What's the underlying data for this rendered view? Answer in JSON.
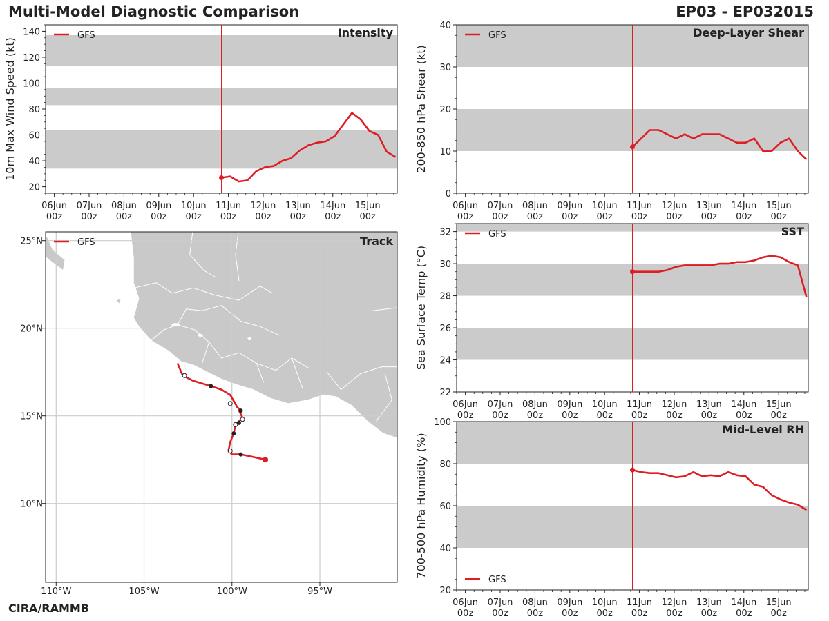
{
  "header": {
    "title": "Multi-Model Diagnostic Comparison",
    "storm_id": "EP03 - EP032015",
    "credit": "CIRA/RAMMB"
  },
  "colors": {
    "series": "#dd1f25",
    "band": "#cbcbcb",
    "land": "#c9c9c9",
    "grid": "#cccccc",
    "axis": "#222222"
  },
  "time_axis": {
    "labels_top": [
      "06Jun",
      "07Jun",
      "08Jun",
      "09Jun",
      "10Jun",
      "11Jun",
      "12Jun",
      "13Jun",
      "14Jun",
      "15Jun"
    ],
    "labels_bottom": [
      "00z",
      "00z",
      "00z",
      "00z",
      "00z",
      "00z",
      "00z",
      "00z",
      "00z",
      "00z"
    ],
    "range_days": [
      -0.25,
      9.85
    ],
    "initial_time_day": 4.8
  },
  "chart_data": [
    {
      "id": "intensity",
      "type": "line",
      "title": "Intensity",
      "ylabel": "10m Max Wind Speed (kt)",
      "ylim": [
        15,
        145
      ],
      "yticks": [
        20,
        40,
        60,
        80,
        100,
        120,
        140
      ],
      "bands": [
        [
          34,
          64
        ],
        [
          83,
          96
        ],
        [
          113,
          137
        ]
      ],
      "legend": "GFS",
      "legend_position": "top-left",
      "series": [
        {
          "name": "GFS",
          "x": [
            4.8,
            5.05,
            5.3,
            5.55,
            5.8,
            6.05,
            6.3,
            6.55,
            6.8,
            7.05,
            7.3,
            7.55,
            7.8,
            8.05,
            8.3,
            8.55,
            8.8,
            9.05,
            9.3,
            9.55,
            9.8
          ],
          "y": [
            27,
            28,
            24,
            25,
            32,
            35,
            36,
            40,
            42,
            48,
            52,
            54,
            55,
            59,
            68,
            77,
            72,
            63,
            60,
            47,
            43
          ]
        }
      ]
    },
    {
      "id": "shear",
      "type": "line",
      "title": "Deep-Layer Shear",
      "ylabel": "200-850 hPa Shear (kt)",
      "ylim": [
        0,
        40
      ],
      "yticks": [
        0,
        10,
        20,
        30,
        40
      ],
      "bands": [
        [
          10,
          20
        ],
        [
          30,
          40
        ]
      ],
      "legend": "GFS",
      "legend_position": "top-left",
      "series": [
        {
          "name": "GFS",
          "x": [
            4.8,
            5.05,
            5.3,
            5.55,
            5.8,
            6.05,
            6.3,
            6.55,
            6.8,
            7.05,
            7.3,
            7.55,
            7.8,
            8.05,
            8.3,
            8.55,
            8.8,
            9.05,
            9.3,
            9.55,
            9.8
          ],
          "y": [
            11,
            13,
            15,
            15,
            14,
            13,
            14,
            13,
            14,
            14,
            14,
            13,
            12,
            12,
            13,
            10,
            10,
            12,
            13,
            10,
            8
          ]
        }
      ]
    },
    {
      "id": "sst",
      "type": "line",
      "title": "SST",
      "ylabel": "Sea Surface Temp (°C)",
      "ylim": [
        22,
        32.5
      ],
      "yticks": [
        22,
        24,
        26,
        28,
        30,
        32
      ],
      "bands": [
        [
          24,
          26
        ],
        [
          28,
          30
        ],
        [
          32,
          32.5
        ]
      ],
      "legend": "GFS",
      "legend_position": "top-left",
      "series": [
        {
          "name": "GFS",
          "x": [
            4.8,
            5.05,
            5.3,
            5.55,
            5.8,
            6.05,
            6.3,
            6.55,
            6.8,
            7.05,
            7.3,
            7.55,
            7.8,
            8.05,
            8.3,
            8.55,
            8.8,
            9.05,
            9.3,
            9.55,
            9.8
          ],
          "y": [
            29.5,
            29.5,
            29.5,
            29.5,
            29.6,
            29.8,
            29.9,
            29.9,
            29.9,
            29.9,
            30.0,
            30.0,
            30.1,
            30.1,
            30.2,
            30.4,
            30.5,
            30.4,
            30.1,
            29.9,
            27.9
          ]
        }
      ]
    },
    {
      "id": "rh",
      "type": "line",
      "title": "Mid-Level RH",
      "ylabel": "700-500 hPa Humidity (%)",
      "ylim": [
        20,
        100
      ],
      "yticks": [
        20,
        40,
        60,
        80,
        100
      ],
      "bands": [
        [
          40,
          60
        ],
        [
          80,
          100
        ]
      ],
      "legend": "GFS",
      "legend_position": "bottom-left",
      "series": [
        {
          "name": "GFS",
          "x": [
            4.8,
            5.05,
            5.3,
            5.55,
            5.8,
            6.05,
            6.3,
            6.55,
            6.8,
            7.05,
            7.3,
            7.55,
            7.8,
            8.05,
            8.3,
            8.55,
            8.8,
            9.05,
            9.3,
            9.55,
            9.8
          ],
          "y": [
            77,
            76,
            75.5,
            75.5,
            74.5,
            73.5,
            74,
            76,
            74,
            74.5,
            74,
            76,
            74.5,
            74,
            70,
            69,
            65,
            63,
            61.5,
            60.5,
            58
          ]
        }
      ]
    },
    {
      "id": "track",
      "type": "map",
      "title": "Track",
      "legend": "GFS",
      "lon_range": [
        -110.6,
        -90.6
      ],
      "lat_range": [
        5.5,
        25.5
      ],
      "lon_ticks": [
        -110,
        -105,
        -100,
        -95
      ],
      "lon_labels": [
        "110°W",
        "105°W",
        "100°W",
        "95°W"
      ],
      "lat_ticks": [
        10,
        15,
        20,
        25
      ],
      "lat_labels": [
        "10°N",
        "15°N",
        "20°N",
        "25°N"
      ],
      "track": {
        "lon": [
          -98.1,
          -99.0,
          -99.5,
          -100.0,
          -100.2,
          -100.1,
          -99.9,
          -99.8,
          -99.6,
          -99.4,
          -99.6,
          -99.5,
          -99.7,
          -100.1,
          -100.6,
          -101.2,
          -102.2,
          -102.8,
          -103.1
        ],
        "lat": [
          12.5,
          12.7,
          12.8,
          12.8,
          13.0,
          13.5,
          14.0,
          14.5,
          14.7,
          14.9,
          15.3,
          15.3,
          15.5,
          16.2,
          16.5,
          16.7,
          17.0,
          17.3,
          18.0
        ]
      },
      "markers": [
        {
          "lon": -98.1,
          "lat": 12.5,
          "kind": "start"
        },
        {
          "lon": -99.5,
          "lat": 12.8,
          "kind": "filled"
        },
        {
          "lon": -100.1,
          "lat": 13.0,
          "kind": "open"
        },
        {
          "lon": -99.9,
          "lat": 14.0,
          "kind": "filled"
        },
        {
          "lon": -99.8,
          "lat": 14.5,
          "kind": "open"
        },
        {
          "lon": -99.6,
          "lat": 14.6,
          "kind": "filled"
        },
        {
          "lon": -99.4,
          "lat": 14.8,
          "kind": "open"
        },
        {
          "lon": -99.5,
          "lat": 15.3,
          "kind": "filled"
        },
        {
          "lon": -100.1,
          "lat": 15.7,
          "kind": "open"
        },
        {
          "lon": -101.2,
          "lat": 16.7,
          "kind": "filled"
        },
        {
          "lon": -102.7,
          "lat": 17.3,
          "kind": "open"
        }
      ]
    }
  ]
}
